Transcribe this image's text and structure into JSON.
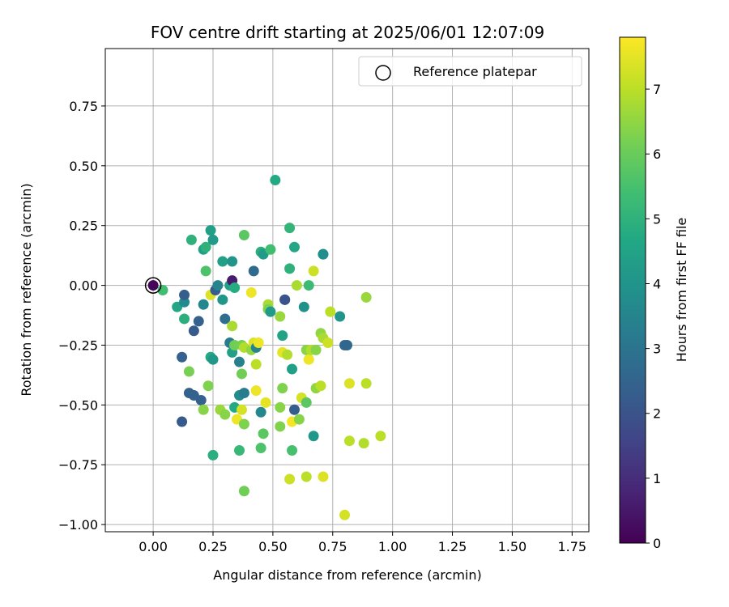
{
  "chart_data": {
    "type": "scatter",
    "title": "FOV centre drift starting at 2025/06/01 12:07:09",
    "xlabel": "Angular distance from reference (arcmin)",
    "ylabel": "Rotation from reference (arcmin)",
    "xlim": [
      -0.2,
      1.82
    ],
    "ylim": [
      -1.03,
      0.99
    ],
    "x_ticks": [
      0.0,
      0.25,
      0.5,
      0.75,
      1.0,
      1.25,
      1.5,
      1.75
    ],
    "x_tick_labels": [
      "0.00",
      "0.25",
      "0.50",
      "0.75",
      "1.00",
      "1.25",
      "1.50",
      "1.75"
    ],
    "y_ticks": [
      -1.0,
      -0.75,
      -0.5,
      -0.25,
      0.0,
      0.25,
      0.5,
      0.75
    ],
    "y_tick_labels": [
      "−1.00",
      "−0.75",
      "−0.50",
      "−0.25",
      "0.00",
      "0.25",
      "0.50",
      "0.75"
    ],
    "grid": true,
    "legend": {
      "placement": "upper-right",
      "entries": [
        "Reference platepar"
      ]
    },
    "colorbar": {
      "label": "Hours from first FF file",
      "min": 0,
      "max": 7.8,
      "ticks": [
        0,
        1,
        2,
        3,
        4,
        5,
        6,
        7
      ],
      "tick_labels": [
        "0",
        "1",
        "2",
        "3",
        "4",
        "5",
        "6",
        "7"
      ],
      "colormap": "viridis"
    },
    "reference_point": {
      "x": 0.0,
      "y": 0.0,
      "hours": 0.0
    },
    "points": [
      {
        "x": 0.0,
        "y": 0.0,
        "hours": 0.1
      },
      {
        "x": 0.04,
        "y": -0.02,
        "hours": 5.4
      },
      {
        "x": 0.1,
        "y": -0.09,
        "hours": 4.6
      },
      {
        "x": 0.13,
        "y": -0.14,
        "hours": 4.9
      },
      {
        "x": 0.13,
        "y": -0.07,
        "hours": 3.7
      },
      {
        "x": 0.13,
        "y": -0.04,
        "hours": 2.3
      },
      {
        "x": 0.16,
        "y": 0.19,
        "hours": 5.0
      },
      {
        "x": 0.12,
        "y": -0.3,
        "hours": 2.4
      },
      {
        "x": 0.15,
        "y": -0.36,
        "hours": 6.2
      },
      {
        "x": 0.15,
        "y": -0.45,
        "hours": 2.4
      },
      {
        "x": 0.17,
        "y": -0.46,
        "hours": 2.4
      },
      {
        "x": 0.17,
        "y": -0.19,
        "hours": 2.2
      },
      {
        "x": 0.19,
        "y": -0.15,
        "hours": 2.4
      },
      {
        "x": 0.2,
        "y": -0.48,
        "hours": 2.4
      },
      {
        "x": 0.12,
        "y": -0.57,
        "hours": 2.2
      },
      {
        "x": 0.21,
        "y": 0.15,
        "hours": 4.4
      },
      {
        "x": 0.22,
        "y": 0.16,
        "hours": 5.0
      },
      {
        "x": 0.21,
        "y": -0.08,
        "hours": 3.6
      },
      {
        "x": 0.22,
        "y": 0.06,
        "hours": 5.6
      },
      {
        "x": 0.21,
        "y": -0.52,
        "hours": 6.4
      },
      {
        "x": 0.23,
        "y": -0.42,
        "hours": 6.3
      },
      {
        "x": 0.24,
        "y": 0.23,
        "hours": 4.4
      },
      {
        "x": 0.25,
        "y": 0.19,
        "hours": 4.2
      },
      {
        "x": 0.24,
        "y": -0.3,
        "hours": 4.7
      },
      {
        "x": 0.25,
        "y": -0.31,
        "hours": 4.1
      },
      {
        "x": 0.24,
        "y": -0.04,
        "hours": 7.4
      },
      {
        "x": 0.26,
        "y": -0.02,
        "hours": 2.3
      },
      {
        "x": 0.27,
        "y": 0.0,
        "hours": 3.5
      },
      {
        "x": 0.25,
        "y": -0.71,
        "hours": 4.9
      },
      {
        "x": 0.28,
        "y": -0.52,
        "hours": 6.6
      },
      {
        "x": 0.29,
        "y": 0.1,
        "hours": 4.4
      },
      {
        "x": 0.29,
        "y": -0.06,
        "hours": 4.1
      },
      {
        "x": 0.3,
        "y": -0.14,
        "hours": 2.8
      },
      {
        "x": 0.3,
        "y": -0.54,
        "hours": 6.4
      },
      {
        "x": 0.32,
        "y": -0.24,
        "hours": 3.2
      },
      {
        "x": 0.32,
        "y": 0.0,
        "hours": 4.4
      },
      {
        "x": 0.33,
        "y": 0.1,
        "hours": 4.0
      },
      {
        "x": 0.33,
        "y": 0.02,
        "hours": 0.6
      },
      {
        "x": 0.33,
        "y": -0.17,
        "hours": 6.8
      },
      {
        "x": 0.33,
        "y": -0.28,
        "hours": 4.4
      },
      {
        "x": 0.34,
        "y": -0.25,
        "hours": 6.1
      },
      {
        "x": 0.34,
        "y": -0.01,
        "hours": 4.8
      },
      {
        "x": 0.34,
        "y": -0.51,
        "hours": 4.7
      },
      {
        "x": 0.35,
        "y": -0.56,
        "hours": 7.6
      },
      {
        "x": 0.36,
        "y": -0.32,
        "hours": 3.4
      },
      {
        "x": 0.36,
        "y": -0.46,
        "hours": 3.7
      },
      {
        "x": 0.37,
        "y": -0.37,
        "hours": 6.1
      },
      {
        "x": 0.37,
        "y": -0.52,
        "hours": 7.3
      },
      {
        "x": 0.36,
        "y": -0.69,
        "hours": 5.2
      },
      {
        "x": 0.38,
        "y": -0.45,
        "hours": 3.2
      },
      {
        "x": 0.37,
        "y": -0.25,
        "hours": 6.2
      },
      {
        "x": 0.38,
        "y": 0.21,
        "hours": 5.8
      },
      {
        "x": 0.38,
        "y": -0.26,
        "hours": 6.9
      },
      {
        "x": 0.38,
        "y": -0.58,
        "hours": 6.3
      },
      {
        "x": 0.38,
        "y": -0.86,
        "hours": 6.1
      },
      {
        "x": 0.41,
        "y": -0.27,
        "hours": 6.5
      },
      {
        "x": 0.41,
        "y": -0.03,
        "hours": 7.6
      },
      {
        "x": 0.42,
        "y": -0.24,
        "hours": 7.4
      },
      {
        "x": 0.42,
        "y": 0.06,
        "hours": 2.7
      },
      {
        "x": 0.43,
        "y": -0.26,
        "hours": 3.5
      },
      {
        "x": 0.43,
        "y": -0.33,
        "hours": 7.0
      },
      {
        "x": 0.43,
        "y": -0.44,
        "hours": 7.6
      },
      {
        "x": 0.44,
        "y": -0.24,
        "hours": 7.6
      },
      {
        "x": 0.45,
        "y": -0.53,
        "hours": 3.6
      },
      {
        "x": 0.45,
        "y": -0.68,
        "hours": 5.6
      },
      {
        "x": 0.45,
        "y": 0.14,
        "hours": 4.9
      },
      {
        "x": 0.46,
        "y": 0.13,
        "hours": 4.2
      },
      {
        "x": 0.46,
        "y": -0.62,
        "hours": 5.8
      },
      {
        "x": 0.47,
        "y": -0.49,
        "hours": 7.5
      },
      {
        "x": 0.48,
        "y": -0.08,
        "hours": 6.8
      },
      {
        "x": 0.48,
        "y": -0.1,
        "hours": 6.3
      },
      {
        "x": 0.49,
        "y": 0.15,
        "hours": 5.4
      },
      {
        "x": 0.49,
        "y": -0.11,
        "hours": 4.2
      },
      {
        "x": 0.51,
        "y": 0.44,
        "hours": 4.7
      },
      {
        "x": 0.53,
        "y": -0.59,
        "hours": 6.3
      },
      {
        "x": 0.53,
        "y": -0.51,
        "hours": 6.4
      },
      {
        "x": 0.53,
        "y": -0.13,
        "hours": 6.6
      },
      {
        "x": 0.54,
        "y": -0.21,
        "hours": 4.5
      },
      {
        "x": 0.54,
        "y": -0.28,
        "hours": 7.5
      },
      {
        "x": 0.54,
        "y": -0.43,
        "hours": 6.3
      },
      {
        "x": 0.55,
        "y": -0.06,
        "hours": 1.8
      },
      {
        "x": 0.55,
        "y": -0.06,
        "hours": 2.0
      },
      {
        "x": 0.56,
        "y": -0.29,
        "hours": 6.9
      },
      {
        "x": 0.57,
        "y": 0.07,
        "hours": 5.0
      },
      {
        "x": 0.57,
        "y": 0.24,
        "hours": 5.1
      },
      {
        "x": 0.57,
        "y": -0.81,
        "hours": 7.2
      },
      {
        "x": 0.58,
        "y": -0.35,
        "hours": 4.4
      },
      {
        "x": 0.58,
        "y": -0.57,
        "hours": 7.7
      },
      {
        "x": 0.58,
        "y": -0.69,
        "hours": 5.5
      },
      {
        "x": 0.59,
        "y": -0.52,
        "hours": 2.3
      },
      {
        "x": 0.59,
        "y": 0.16,
        "hours": 4.6
      },
      {
        "x": 0.6,
        "y": 0.0,
        "hours": 6.8
      },
      {
        "x": 0.61,
        "y": -0.56,
        "hours": 6.4
      },
      {
        "x": 0.62,
        "y": -0.47,
        "hours": 7.3
      },
      {
        "x": 0.63,
        "y": -0.09,
        "hours": 3.9
      },
      {
        "x": 0.64,
        "y": -0.49,
        "hours": 5.8
      },
      {
        "x": 0.64,
        "y": -0.27,
        "hours": 6.4
      },
      {
        "x": 0.64,
        "y": -0.8,
        "hours": 7.0
      },
      {
        "x": 0.65,
        "y": 0.0,
        "hours": 5.3
      },
      {
        "x": 0.65,
        "y": -0.31,
        "hours": 7.6
      },
      {
        "x": 0.66,
        "y": -0.27,
        "hours": 6.9
      },
      {
        "x": 0.67,
        "y": -0.63,
        "hours": 4.1
      },
      {
        "x": 0.67,
        "y": 0.06,
        "hours": 7.2
      },
      {
        "x": 0.68,
        "y": -0.43,
        "hours": 6.5
      },
      {
        "x": 0.68,
        "y": -0.27,
        "hours": 6.4
      },
      {
        "x": 0.7,
        "y": -0.2,
        "hours": 6.5
      },
      {
        "x": 0.7,
        "y": -0.42,
        "hours": 7.0
      },
      {
        "x": 0.71,
        "y": 0.13,
        "hours": 3.5
      },
      {
        "x": 0.71,
        "y": 0.13,
        "hours": 3.8
      },
      {
        "x": 0.71,
        "y": -0.22,
        "hours": 6.8
      },
      {
        "x": 0.71,
        "y": -0.8,
        "hours": 7.4
      },
      {
        "x": 0.73,
        "y": -0.24,
        "hours": 7.2
      },
      {
        "x": 0.74,
        "y": -0.11,
        "hours": 7.0
      },
      {
        "x": 0.78,
        "y": -0.13,
        "hours": 4.0
      },
      {
        "x": 0.8,
        "y": -0.25,
        "hours": 2.6
      },
      {
        "x": 0.81,
        "y": -0.25,
        "hours": 2.6
      },
      {
        "x": 0.8,
        "y": -0.96,
        "hours": 7.3
      },
      {
        "x": 0.82,
        "y": -0.41,
        "hours": 7.4
      },
      {
        "x": 0.82,
        "y": -0.65,
        "hours": 7.0
      },
      {
        "x": 0.88,
        "y": -0.66,
        "hours": 6.9
      },
      {
        "x": 0.89,
        "y": -0.41,
        "hours": 7.0
      },
      {
        "x": 0.89,
        "y": -0.05,
        "hours": 6.6
      },
      {
        "x": 0.95,
        "y": -0.63,
        "hours": 7.0
      }
    ]
  }
}
